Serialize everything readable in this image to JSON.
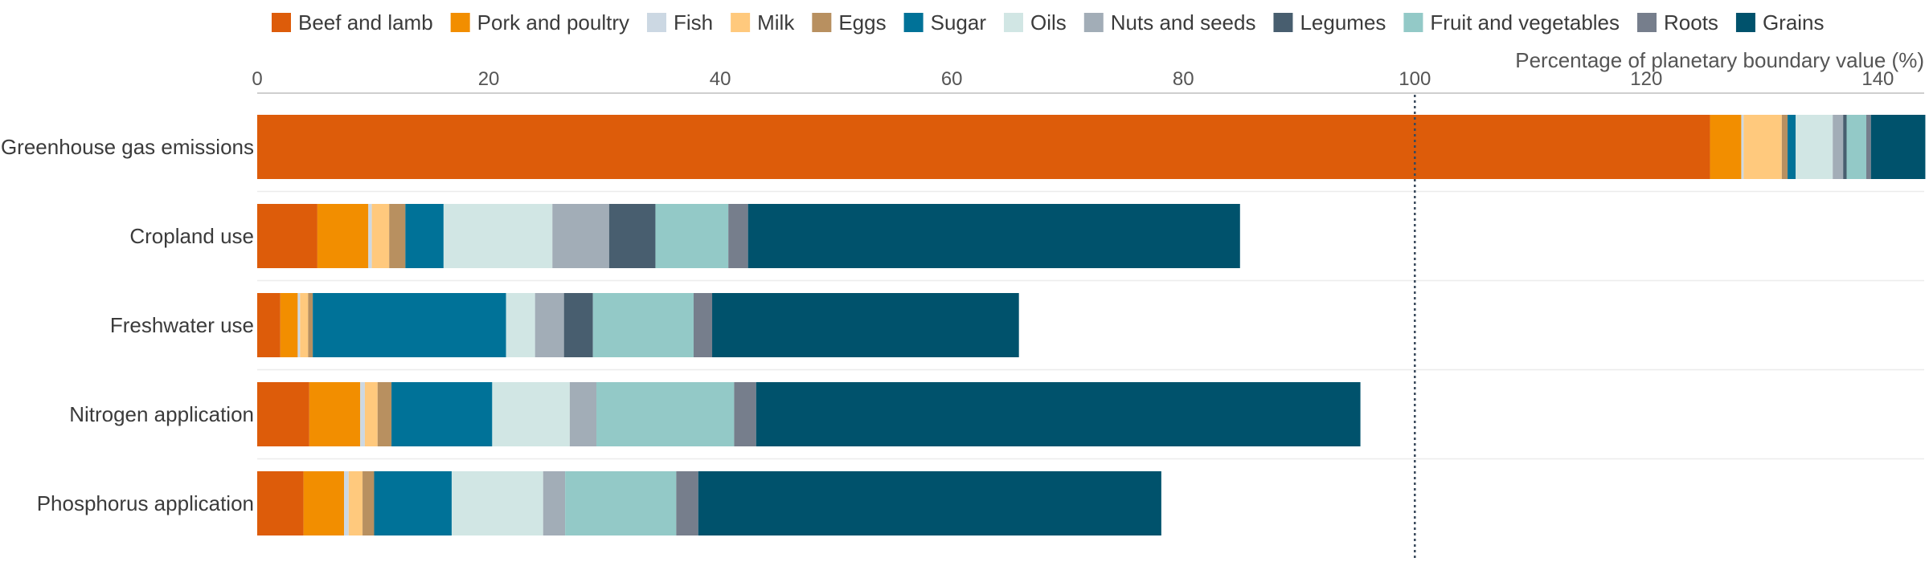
{
  "chart_data": {
    "type": "bar",
    "orientation": "horizontal",
    "stacked": true,
    "xlabel": "Percentage of planetary boundary value (%)",
    "xlim": [
      0,
      144
    ],
    "xticks": [
      0,
      20,
      40,
      60,
      80,
      100,
      120,
      140
    ],
    "reference_line": 100,
    "legend_position": "top",
    "grid": "horizontal",
    "categories": [
      "Greenhouse gas emissions",
      "Cropland use",
      "Freshwater use",
      "Nitrogen application",
      "Phosphorus application"
    ],
    "series": [
      {
        "name": "Beef and lamb",
        "color": "#dd5c0a",
        "values": [
          125.5,
          5.2,
          2.0,
          4.5,
          4.0
        ]
      },
      {
        "name": "Pork and poultry",
        "color": "#f28e00",
        "values": [
          2.7,
          4.4,
          1.5,
          4.4,
          3.5
        ]
      },
      {
        "name": "Fish",
        "color": "#ccd8e3",
        "values": [
          0.2,
          0.3,
          0.2,
          0.4,
          0.4
        ]
      },
      {
        "name": "Milk",
        "color": "#ffc97d",
        "values": [
          3.3,
          1.5,
          0.7,
          1.1,
          1.2
        ]
      },
      {
        "name": "Eggs",
        "color": "#b89060",
        "values": [
          0.5,
          1.4,
          0.4,
          1.2,
          1.0
        ]
      },
      {
        "name": "Sugar",
        "color": "#007298",
        "values": [
          0.7,
          3.3,
          16.7,
          8.7,
          6.7
        ]
      },
      {
        "name": "Oils",
        "color": "#d1e6e4",
        "values": [
          3.2,
          9.4,
          2.5,
          6.7,
          7.9
        ]
      },
      {
        "name": "Nuts and seeds",
        "color": "#a2adb7",
        "values": [
          0.9,
          4.9,
          2.5,
          2.3,
          1.9
        ]
      },
      {
        "name": "Legumes",
        "color": "#485e6f",
        "values": [
          0.3,
          4.0,
          2.5,
          0.0,
          0.0
        ]
      },
      {
        "name": "Fruit and vegetables",
        "color": "#93c9c7",
        "values": [
          1.7,
          6.3,
          8.7,
          11.9,
          9.6
        ]
      },
      {
        "name": "Roots",
        "color": "#767e8c",
        "values": [
          0.4,
          1.7,
          1.6,
          1.9,
          1.9
        ]
      },
      {
        "name": "Grains",
        "color": "#00526c",
        "values": [
          4.7,
          42.5,
          26.5,
          52.2,
          40.0
        ]
      }
    ]
  }
}
